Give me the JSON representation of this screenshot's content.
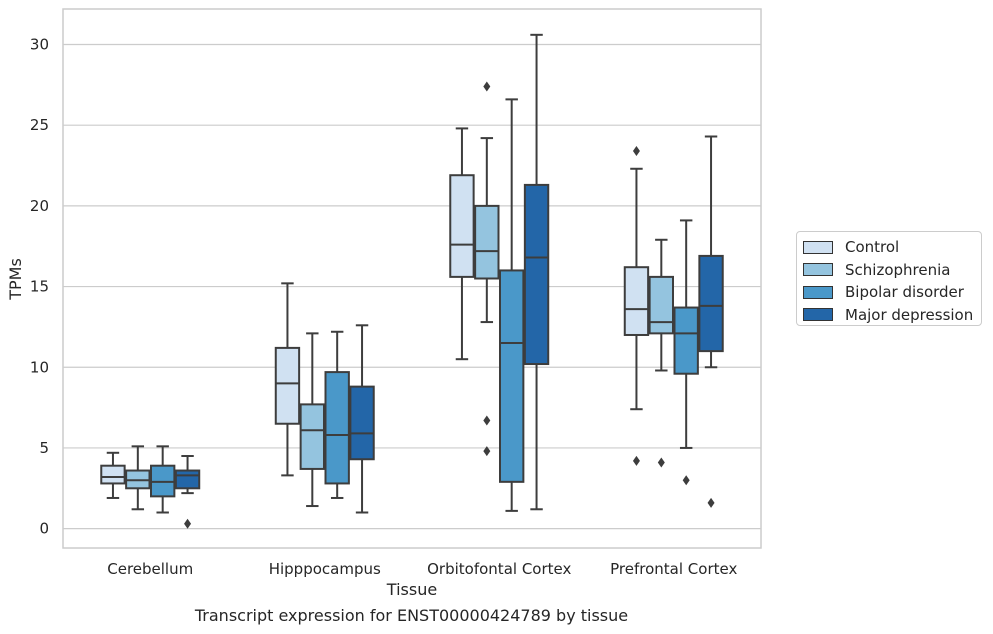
{
  "chart_data": {
    "type": "box",
    "xlabel": "Tissue",
    "ylabel": "TPMs",
    "caption": "Transcript expression for ENST00000424789 by tissue",
    "ylim": [
      -1.2,
      32.2
    ],
    "yticks": [
      0,
      5,
      10,
      15,
      20,
      25,
      30
    ],
    "grid": "horizontal",
    "legend_position": "right",
    "categories": [
      "Cerebellum",
      "Hipppocampus",
      "Orbitofontal Cortex",
      "Prefrontal Cortex"
    ],
    "series": [
      {
        "name": "Control",
        "color": "#d0e1f2",
        "boxes": [
          {
            "whislo": 1.9,
            "q1": 2.8,
            "med": 3.2,
            "q3": 3.9,
            "whishi": 4.7,
            "fliers": []
          },
          {
            "whislo": 3.3,
            "q1": 6.5,
            "med": 9.0,
            "q3": 11.2,
            "whishi": 15.2,
            "fliers": []
          },
          {
            "whislo": 10.5,
            "q1": 15.6,
            "med": 17.6,
            "q3": 21.9,
            "whishi": 24.8,
            "fliers": []
          },
          {
            "whislo": 7.4,
            "q1": 12.0,
            "med": 13.6,
            "q3": 16.2,
            "whishi": 22.3,
            "fliers": [
              23.4,
              4.2
            ]
          }
        ]
      },
      {
        "name": "Schizophrenia",
        "color": "#94c4df",
        "boxes": [
          {
            "whislo": 1.2,
            "q1": 2.5,
            "med": 3.0,
            "q3": 3.6,
            "whishi": 5.1,
            "fliers": []
          },
          {
            "whislo": 1.4,
            "q1": 3.7,
            "med": 6.1,
            "q3": 7.7,
            "whishi": 12.1,
            "fliers": []
          },
          {
            "whislo": 12.8,
            "q1": 15.5,
            "med": 17.2,
            "q3": 20.0,
            "whishi": 24.2,
            "fliers": [
              27.4,
              6.7,
              4.8
            ]
          },
          {
            "whislo": 9.8,
            "q1": 12.1,
            "med": 12.8,
            "q3": 15.6,
            "whishi": 17.9,
            "fliers": [
              4.1
            ]
          }
        ]
      },
      {
        "name": "Bipolar disorder",
        "color": "#4a98c9",
        "boxes": [
          {
            "whislo": 1.0,
            "q1": 2.0,
            "med": 2.9,
            "q3": 3.9,
            "whishi": 5.1,
            "fliers": []
          },
          {
            "whislo": 1.9,
            "q1": 2.8,
            "med": 5.8,
            "q3": 9.7,
            "whishi": 12.2,
            "fliers": []
          },
          {
            "whislo": 1.1,
            "q1": 2.9,
            "med": 11.5,
            "q3": 16.0,
            "whishi": 26.6,
            "fliers": []
          },
          {
            "whislo": 5.0,
            "q1": 9.6,
            "med": 12.1,
            "q3": 13.7,
            "whishi": 19.1,
            "fliers": [
              3.0
            ]
          }
        ]
      },
      {
        "name": "Major depression",
        "color": "#2366a8",
        "boxes": [
          {
            "whislo": 2.2,
            "q1": 2.5,
            "med": 3.3,
            "q3": 3.6,
            "whishi": 4.5,
            "fliers": [
              0.3
            ]
          },
          {
            "whislo": 1.0,
            "q1": 4.3,
            "med": 5.9,
            "q3": 8.8,
            "whishi": 12.6,
            "fliers": []
          },
          {
            "whislo": 1.2,
            "q1": 10.2,
            "med": 16.8,
            "q3": 21.3,
            "whishi": 30.6,
            "fliers": []
          },
          {
            "whislo": 10.0,
            "q1": 11.0,
            "med": 13.8,
            "q3": 16.9,
            "whishi": 24.3,
            "fliers": [
              1.6
            ]
          }
        ]
      }
    ]
  }
}
